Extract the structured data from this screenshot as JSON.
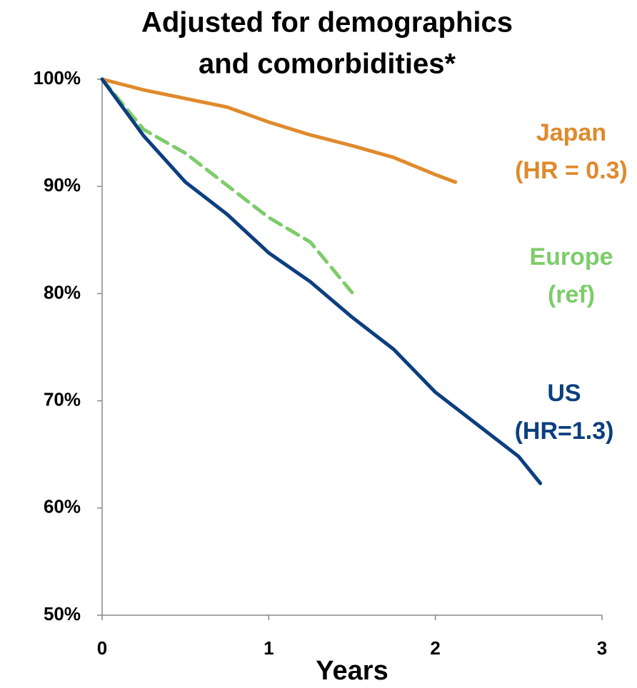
{
  "chart_data": {
    "type": "line",
    "title": [
      "Adjusted for demographics",
      "and comorbidities*"
    ],
    "xlabel": "Years",
    "xlim": [
      0,
      3
    ],
    "xticks": [
      0,
      1,
      2,
      3
    ],
    "ylim": [
      50,
      100
    ],
    "yticks": [
      {
        "value": 50,
        "label": "50%"
      },
      {
        "value": 60,
        "label": "60%"
      },
      {
        "value": 70,
        "label": "70%"
      },
      {
        "value": 80,
        "label": "80%"
      },
      {
        "value": 90,
        "label": "90%"
      },
      {
        "value": 100,
        "label": "100%"
      }
    ],
    "series": [
      {
        "name": "Japan",
        "note": "(HR = 0.3)",
        "color": "#e08a2c",
        "dashed": false,
        "x": [
          0,
          0.25,
          0.5,
          0.75,
          1,
          1.25,
          1.5,
          1.75,
          2,
          2.12
        ],
        "values": [
          100,
          99.0,
          98.2,
          97.4,
          96.0,
          94.8,
          93.8,
          92.7,
          91.1,
          90.4
        ]
      },
      {
        "name": "Europe",
        "note": "(ref)",
        "color": "#7dcc6a",
        "dashed": true,
        "x": [
          0,
          0.25,
          0.5,
          0.75,
          1,
          1.25,
          1.5
        ],
        "values": [
          100,
          95.3,
          93.1,
          90.1,
          87.1,
          84.8,
          80.1
        ]
      },
      {
        "name": "US",
        "note": "(HR=1.3)",
        "color": "#0b3f80",
        "dashed": false,
        "x": [
          0,
          0.25,
          0.5,
          0.75,
          1,
          1.25,
          1.5,
          1.75,
          2,
          2.25,
          2.5,
          2.63
        ],
        "values": [
          100,
          94.7,
          90.4,
          87.4,
          83.8,
          81.1,
          77.8,
          74.8,
          70.8,
          67.8,
          64.8,
          62.3
        ]
      }
    ]
  }
}
